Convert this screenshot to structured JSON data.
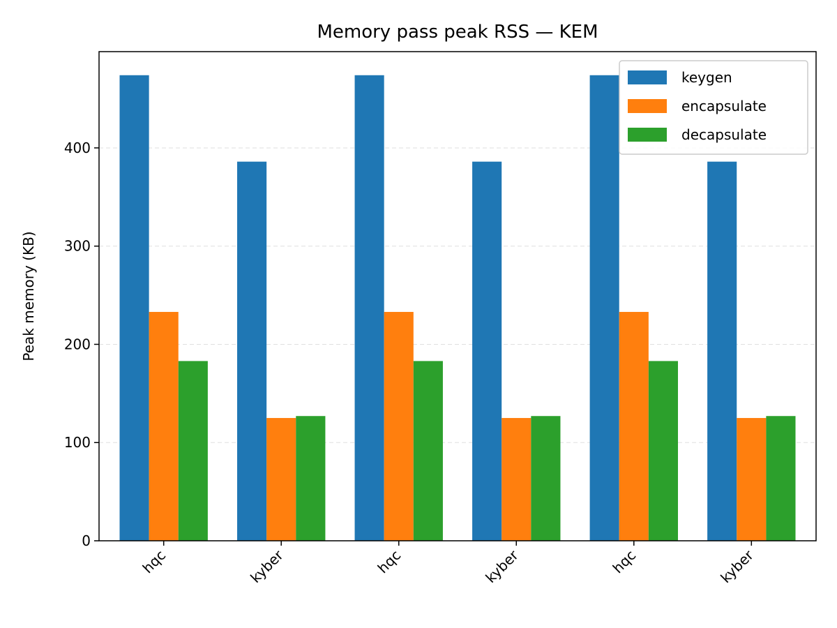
{
  "chart_data": {
    "type": "bar",
    "title": "Memory pass peak RSS — KEM",
    "xlabel": "",
    "ylabel": "Peak memory (KB)",
    "categories": [
      "hqc",
      "kyber",
      "hqc",
      "kyber",
      "hqc",
      "kyber"
    ],
    "series": [
      {
        "name": "keygen",
        "color": "#1f77b4",
        "values": [
          474,
          386,
          474,
          386,
          474,
          386
        ]
      },
      {
        "name": "encapsulate",
        "color": "#ff7f0e",
        "values": [
          233,
          125,
          233,
          125,
          233,
          125
        ]
      },
      {
        "name": "decapsulate",
        "color": "#2ca02c",
        "values": [
          183,
          127,
          183,
          127,
          183,
          127
        ]
      }
    ],
    "ylim": [
      0,
      498
    ],
    "yticks": [
      0,
      100,
      200,
      300,
      400
    ],
    "grid": "y-dashed",
    "legend_position": "top-right"
  }
}
